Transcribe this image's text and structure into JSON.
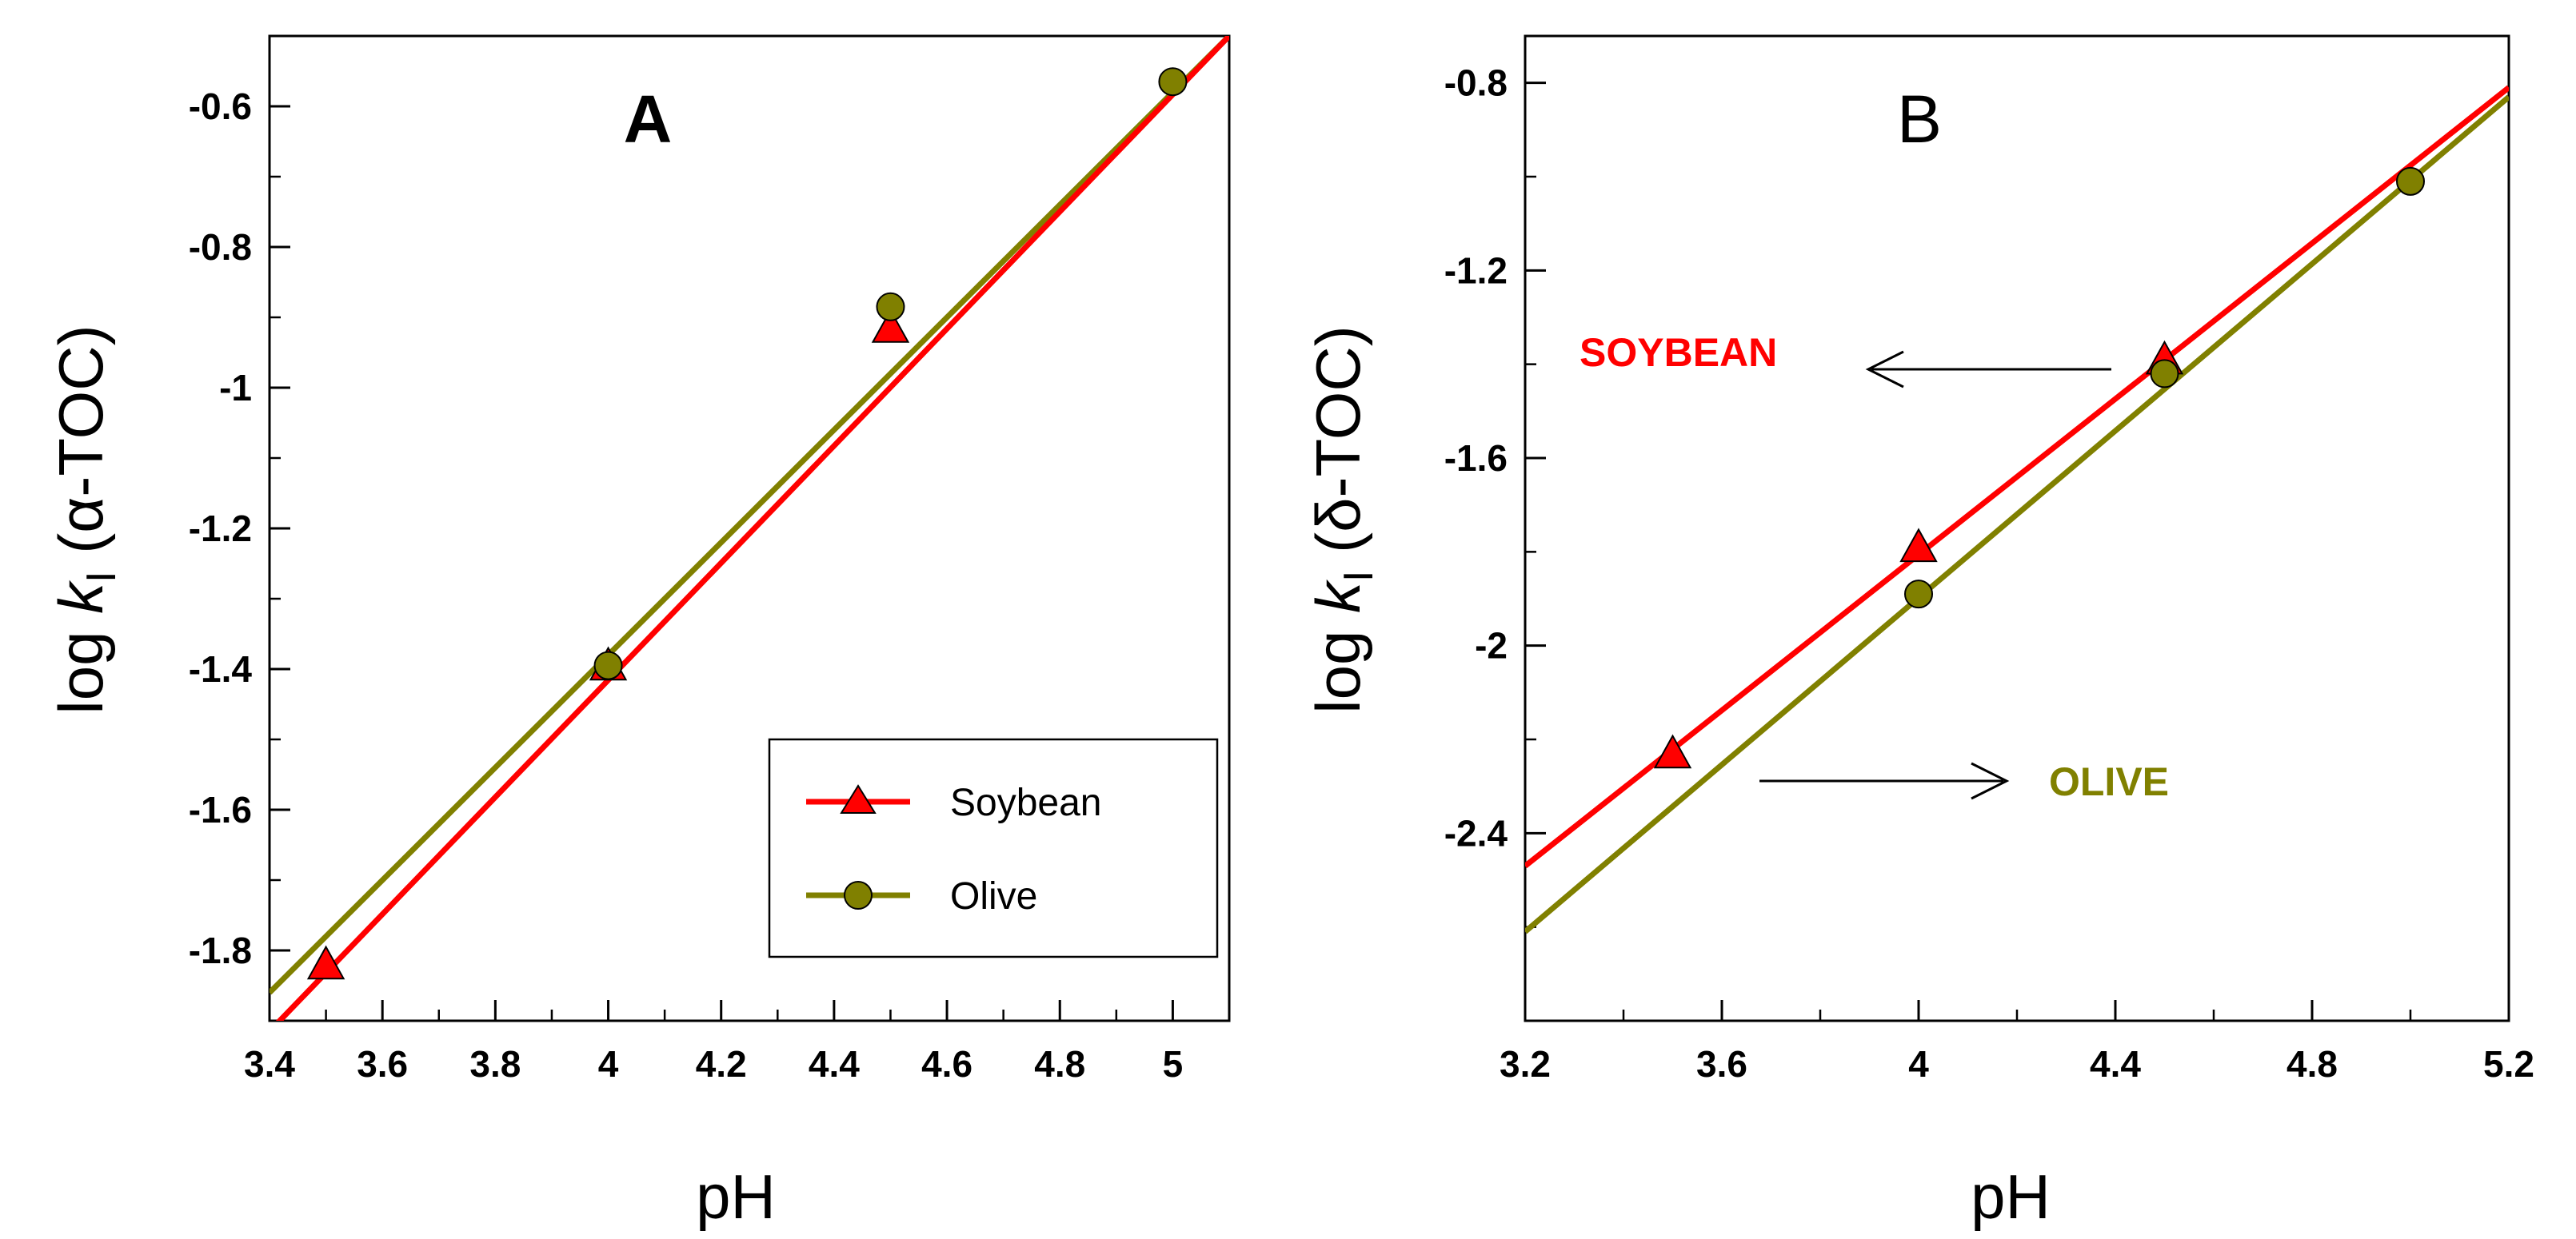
{
  "chart_data": [
    {
      "type": "scatter",
      "panel_label": "A",
      "xlabel": "pH",
      "ylabel_prefix": "log ",
      "ylabel_k": "k",
      "ylabel_sub": "I",
      "ylabel_suffix": " (α-TOC)",
      "xlim": [
        3.4,
        5.1
      ],
      "ylim": [
        -1.9,
        -0.5
      ],
      "xticks": [
        3.4,
        3.6,
        3.8,
        4.0,
        4.2,
        4.4,
        4.6,
        4.8,
        5.0
      ],
      "xtick_labels": [
        "3.4",
        "3.6",
        "3.8",
        "4",
        "4.2",
        "4.4",
        "4.6",
        "4.8",
        "5"
      ],
      "xminor": [
        3.5,
        3.7,
        3.9,
        4.1,
        4.3,
        4.5,
        4.7,
        4.9,
        5.1
      ],
      "yticks": [
        -1.8,
        -1.6,
        -1.4,
        -1.2,
        -1.0,
        -0.8,
        -0.6
      ],
      "ytick_labels": [
        "-1.8",
        "-1.6",
        "-1.4",
        "-1.2",
        "-1",
        "-0.8",
        "-0.6"
      ],
      "yminor": [
        -1.7,
        -1.5,
        -1.3,
        -1.1,
        -0.9,
        -0.7,
        -0.5
      ],
      "legend": {
        "position": "bottom-right",
        "entries": [
          {
            "label": "Soybean",
            "series": "soybean"
          },
          {
            "label": "Olive",
            "series": "olive"
          }
        ]
      },
      "series": [
        {
          "key": "soybean",
          "name": "Soybean",
          "marker": "triangle",
          "color": "#ff0000",
          "x": [
            3.5,
            4.0,
            4.5
          ],
          "y": [
            -1.82,
            -1.395,
            -0.915
          ],
          "fit": {
            "x": [
              3.4,
              5.1
            ],
            "y": [
              -1.915,
              -0.5
            ]
          }
        },
        {
          "key": "olive",
          "name": "Olive",
          "marker": "circle",
          "color": "#808000",
          "x": [
            4.0,
            4.5,
            5.0
          ],
          "y": [
            -1.395,
            -0.885,
            -0.565
          ],
          "fit": {
            "x": [
              3.4,
              5.1
            ],
            "y": [
              -1.86,
              -0.5
            ]
          }
        }
      ]
    },
    {
      "type": "scatter",
      "panel_label": "B",
      "xlabel": "pH",
      "ylabel_prefix": "log ",
      "ylabel_k": "k",
      "ylabel_sub": "I",
      "ylabel_suffix": " (δ-TOC)",
      "xlim": [
        3.2,
        5.2
      ],
      "ylim": [
        -2.8,
        -0.7
      ],
      "xticks": [
        3.2,
        3.6,
        4.0,
        4.4,
        4.8,
        5.2
      ],
      "xtick_labels": [
        "3.2",
        "3.6",
        "4",
        "4.4",
        "4.8",
        "5.2"
      ],
      "xminor": [
        3.4,
        3.8,
        4.2,
        4.6,
        5.0
      ],
      "yticks": [
        -2.4,
        -2.0,
        -1.6,
        -1.2,
        -0.8
      ],
      "ytick_labels": [
        "-2.4",
        "-2",
        "-1.6",
        "-1.2",
        "-0.8"
      ],
      "yminor": [
        -2.6,
        -2.2,
        -1.8,
        -1.4,
        -1.0
      ],
      "annotations": [
        {
          "text": "SOYBEAN",
          "color": "#ff0000",
          "arrow": "left"
        },
        {
          "text": "OLIVE",
          "color": "#808000",
          "arrow": "right"
        }
      ],
      "series": [
        {
          "key": "soybean",
          "name": "Soybean",
          "marker": "triangle",
          "color": "#ff0000",
          "x": [
            3.5,
            4.0,
            4.5
          ],
          "y": [
            -2.23,
            -1.79,
            -1.39
          ],
          "fit": {
            "x": [
              3.2,
              5.2
            ],
            "y": [
              -2.47,
              -0.81
            ]
          }
        },
        {
          "key": "olive",
          "name": "Olive",
          "marker": "circle",
          "color": "#808000",
          "x": [
            4.0,
            4.5,
            5.0
          ],
          "y": [
            -1.89,
            -1.42,
            -1.01
          ],
          "fit": {
            "x": [
              3.2,
              5.2
            ],
            "y": [
              -2.61,
              -0.83
            ]
          }
        }
      ]
    }
  ]
}
